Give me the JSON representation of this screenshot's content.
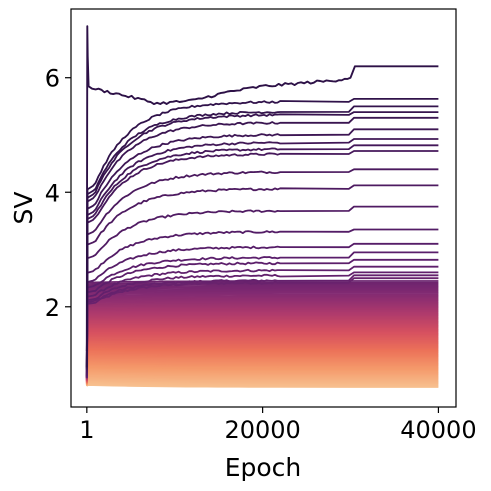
{
  "chart_data": {
    "type": "line",
    "title": "",
    "xlabel": "Epoch",
    "ylabel": "SV",
    "xlim": [
      -1800,
      42000
    ],
    "ylim": [
      0.25,
      7.2
    ],
    "x_ticks": [
      {
        "value": 1,
        "label": "1"
      },
      {
        "value": 20000,
        "label": "20000"
      },
      {
        "value": 40000,
        "label": "40000"
      }
    ],
    "y_ticks": [
      {
        "value": 2,
        "label": "2"
      },
      {
        "value": 4,
        "label": "4"
      },
      {
        "value": 6,
        "label": "6"
      }
    ],
    "grid": false,
    "legend": "none",
    "colormap": [
      "#2d1147",
      "#5a1e6b",
      "#832a72",
      "#ae3a6c",
      "#d65060",
      "#ec7259",
      "#f59a6b",
      "#f7c08f"
    ],
    "series_count": 100,
    "series_summary": {
      "x": [
        1,
        200,
        1000,
        4000,
        8000,
        12000,
        16000,
        20000,
        24000,
        28000,
        30000,
        30500,
        40000
      ],
      "top_series": [
        6.9,
        5.85,
        5.8,
        5.7,
        5.55,
        5.6,
        5.75,
        5.85,
        5.9,
        5.95,
        6.0,
        6.2,
        6.2
      ],
      "upper_finals": [
        6.2,
        5.63,
        5.5,
        5.4,
        5.3,
        5.1,
        4.93,
        4.82,
        4.72,
        4.4,
        4.12,
        3.75,
        3.35,
        3.1,
        2.95,
        2.82,
        2.7,
        2.6,
        2.55,
        2.5
      ],
      "band_top": 2.45,
      "band_bottom": 0.6
    }
  }
}
